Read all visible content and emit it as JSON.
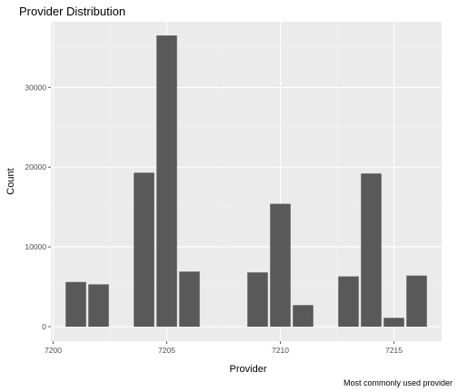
{
  "chart_data": {
    "type": "bar",
    "title": "Provider Distribution",
    "xlabel": "Provider",
    "ylabel": "Count",
    "caption": "Most commonly used provider",
    "x": [
      7201,
      7202,
      7204,
      7205,
      7206,
      7209,
      7210,
      7211,
      7213,
      7214,
      7215,
      7216
    ],
    "values": [
      5600,
      5300,
      19300,
      36500,
      6900,
      6800,
      15400,
      2700,
      6300,
      19200,
      1100,
      6400
    ],
    "xlim": [
      7199.9,
      7217.1
    ],
    "ylim": [
      -1820,
      38220
    ],
    "x_ticks": [
      7200,
      7205,
      7210,
      7215
    ],
    "x_tick_labels": [
      "7200",
      "7205",
      "7210",
      "7215"
    ],
    "y_ticks": [
      0,
      10000,
      20000,
      30000
    ],
    "y_tick_labels": [
      "0",
      "10000",
      "20000",
      "30000"
    ],
    "grid": true,
    "colors": {
      "bar": "#595959",
      "panel": "#ebebeb",
      "grid_major": "#ffffff",
      "grid_minor": "#f5f5f5",
      "tick_label": "#4d4d4d"
    }
  }
}
